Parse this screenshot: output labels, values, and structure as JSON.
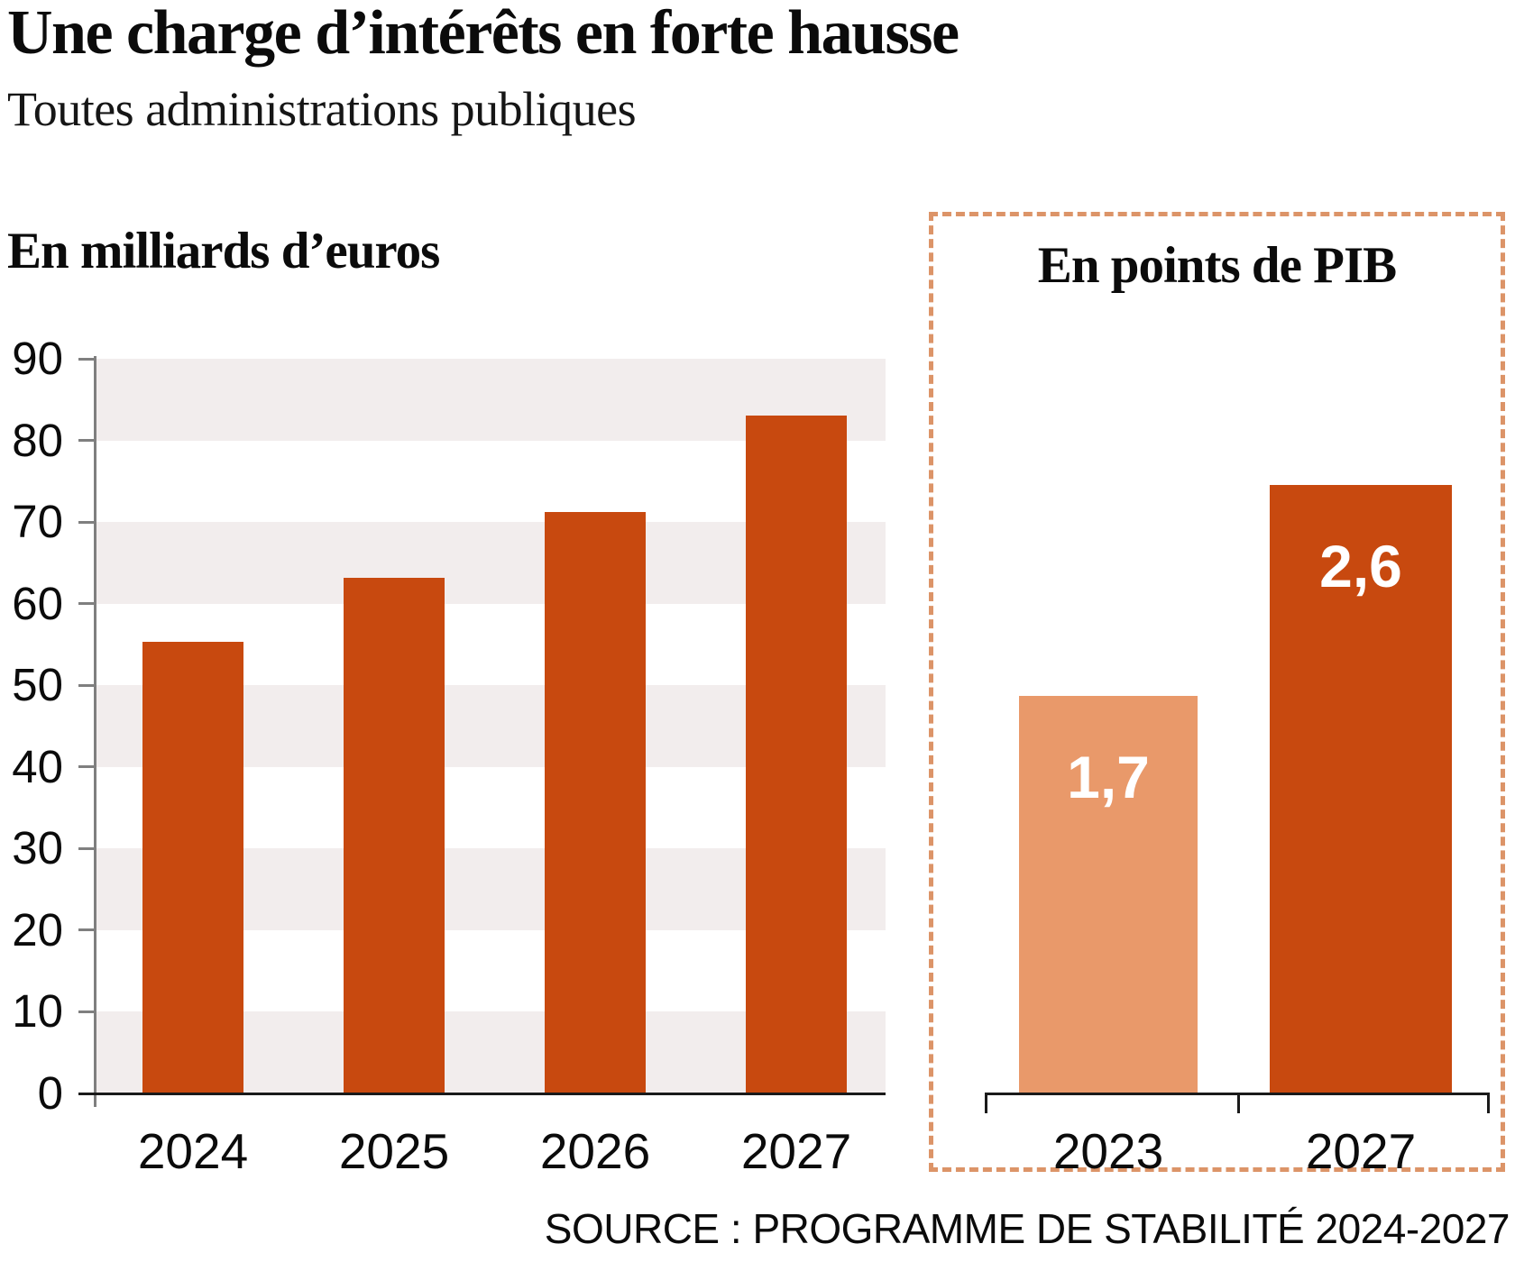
{
  "page": {
    "title": "Une charge d’intérêts en forte hausse",
    "subtitle": "Toutes administrations publiques",
    "source": "SOURCE : PROGRAMME DE STABILITÉ 2024-2027"
  },
  "colors": {
    "bar_dark": "#c8490f",
    "bar_light": "#e9996a",
    "stripe": "#f2eded",
    "axis_gray": "#7f7f7f",
    "baseline_black": "#1a1a1a",
    "dashed_border": "#dc9468",
    "text": "#0b0b0b",
    "value_label": "#ffffff"
  },
  "chart_data": [
    {
      "type": "bar",
      "title": "En milliards d’euros",
      "categories": [
        "2024",
        "2025",
        "2026",
        "2027"
      ],
      "values": [
        55.3,
        63.2,
        71.2,
        83.0
      ],
      "ylim": [
        0,
        90
      ],
      "ytick_step": 10,
      "yticks": [
        "90",
        "80",
        "70",
        "60",
        "50",
        "40",
        "30",
        "20",
        "10",
        "0"
      ],
      "grid": "alternating horizontal bands, striped from 90 down",
      "legend": "none",
      "unit": "milliards d'euros"
    },
    {
      "type": "bar",
      "title": "En points de PIB",
      "categories": [
        "2023",
        "2027"
      ],
      "values": [
        1.7,
        2.6
      ],
      "value_labels": [
        "1,7",
        "2,6"
      ],
      "ylim": [
        0,
        2.6
      ],
      "grid": "none, framed by dashed box",
      "legend": "none",
      "unit": "points de PIB"
    }
  ]
}
